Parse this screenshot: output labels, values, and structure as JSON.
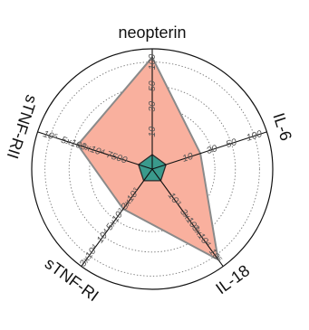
{
  "chart_data": {
    "type": "radar",
    "axes": [
      {
        "name": "neopterin",
        "ticks": [
          {
            "label": "10",
            "frac": 0.31
          },
          {
            "label": "30",
            "frac": 0.52
          },
          {
            "label": "50",
            "frac": 0.69
          },
          {
            "label": "100",
            "frac": 0.89
          }
        ]
      },
      {
        "name": "IL-6",
        "ticks": [
          {
            "label": "10",
            "frac": 0.31
          },
          {
            "label": "30",
            "frac": 0.52
          },
          {
            "label": "50",
            "frac": 0.69
          },
          {
            "label": "100",
            "frac": 0.89
          }
        ]
      },
      {
        "name": "IL-18",
        "ticks": [
          {
            "label": "10³",
            "frac": 0.31
          },
          {
            "label": "3x10³",
            "frac": 0.52
          },
          {
            "label": "3x10⁴",
            "frac": 0.69
          },
          {
            "label": "10⁵",
            "frac": 0.89
          }
        ]
      },
      {
        "name": "sTNF-RI",
        "ticks": [
          {
            "label": "3x10³",
            "frac": 0.31
          },
          {
            "label": "5x10³",
            "frac": 0.52
          },
          {
            "label": "10⁴",
            "frac": 0.69
          },
          {
            "label": "3x10⁴",
            "frac": 0.89
          }
        ]
      },
      {
        "name": "sTNF-RII",
        "ticks": [
          {
            "label": "7500",
            "frac": 0.31
          },
          {
            "label": "3x10⁴",
            "frac": 0.52
          },
          {
            "label": "5x10⁴",
            "frac": 0.69
          },
          {
            "label": "10⁵",
            "frac": 0.89
          }
        ]
      }
    ],
    "series": [
      {
        "values": [
          0.93,
          0.42,
          0.93,
          0.41,
          0.65
        ],
        "color": "#f9b09e",
        "stroke": "#8a8a8a"
      },
      {
        "values": [
          0.12,
          0.12,
          0.12,
          0.12,
          0.12
        ],
        "color": "#3a9a8c",
        "stroke": "#2b2b2b"
      }
    ],
    "grid": true,
    "rings": [
      0.31,
      0.52,
      0.69,
      0.89
    ]
  }
}
